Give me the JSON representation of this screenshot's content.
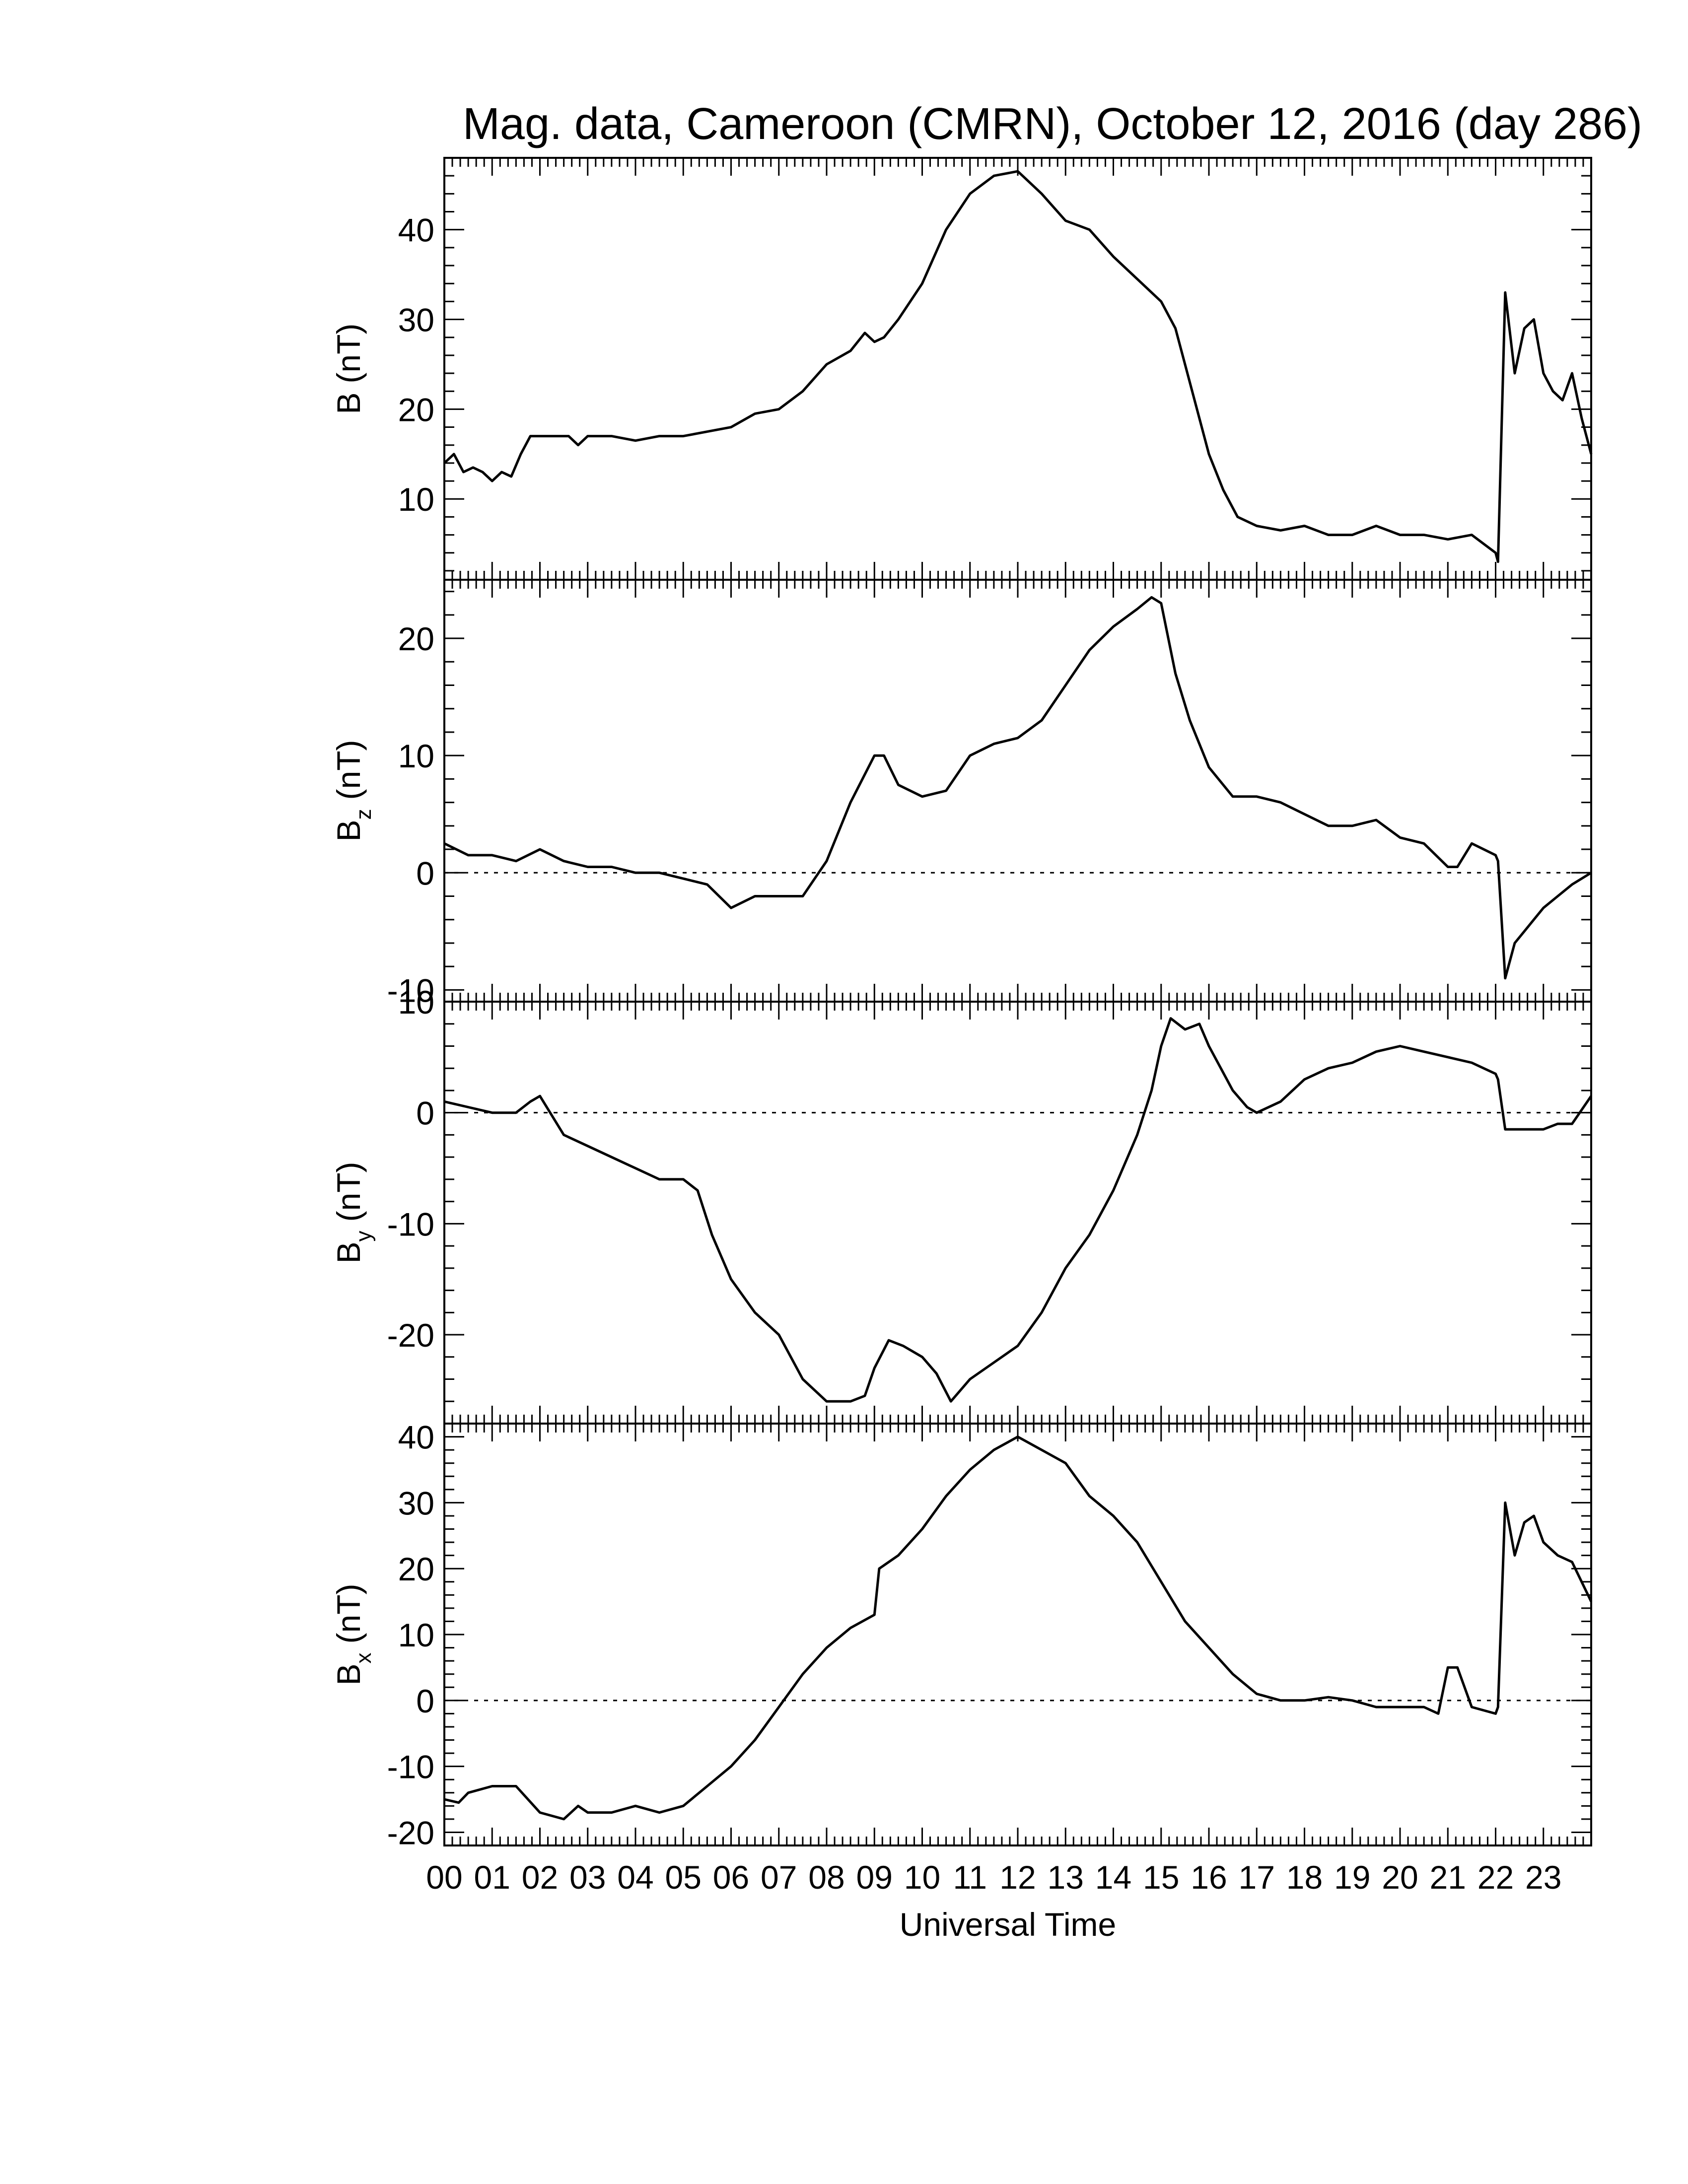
{
  "chart_data": {
    "type": "line",
    "title": "Mag. data, Cameroon (CMRN), October 12, 2016 (day 286)",
    "xlabel": "Universal Time",
    "x_unit": "hours UT",
    "xlim": [
      0,
      24
    ],
    "x_tick_labels": [
      "00",
      "01",
      "02",
      "03",
      "04",
      "05",
      "06",
      "07",
      "08",
      "09",
      "10",
      "11",
      "12",
      "13",
      "14",
      "15",
      "16",
      "17",
      "18",
      "19",
      "20",
      "21",
      "22",
      "23"
    ],
    "line_color": "#000000",
    "panels": [
      {
        "id": "B",
        "ylabel": {
          "main": "B",
          "sub": "",
          "unit": "(nT)"
        },
        "ylim": [
          1,
          48
        ],
        "yticks": [
          10,
          20,
          30,
          40
        ],
        "zero_line": false,
        "x": [
          0,
          0.2,
          0.4,
          0.6,
          0.8,
          1.0,
          1.2,
          1.4,
          1.6,
          1.8,
          2.0,
          2.3,
          2.6,
          2.8,
          3.0,
          3.5,
          4.0,
          4.5,
          5.0,
          5.5,
          6.0,
          6.5,
          7.0,
          7.5,
          8.0,
          8.5,
          8.8,
          9.0,
          9.2,
          9.5,
          10.0,
          10.5,
          11.0,
          11.5,
          12.0,
          12.5,
          13.0,
          13.5,
          14.0,
          14.5,
          15.0,
          15.3,
          15.6,
          16.0,
          16.3,
          16.6,
          17.0,
          17.5,
          18.0,
          18.5,
          19.0,
          19.5,
          20.0,
          20.5,
          21.0,
          21.5,
          22.0,
          22.05,
          22.2,
          22.4,
          22.6,
          22.8,
          23.0,
          23.2,
          23.4,
          23.6,
          23.8,
          24.0
        ],
        "y": [
          14,
          15,
          13,
          13.5,
          13,
          12,
          13,
          12.5,
          15,
          17,
          17,
          17,
          17,
          16,
          17,
          17,
          16.5,
          17,
          17,
          17.5,
          18,
          19.5,
          20,
          22,
          25,
          26.5,
          28.5,
          27.5,
          28,
          30,
          34,
          40,
          44,
          46,
          46.5,
          44,
          41,
          40,
          37,
          34.5,
          32,
          29,
          23,
          15,
          11,
          8,
          7,
          6.5,
          7,
          6,
          6,
          7,
          6,
          6,
          5.5,
          6,
          4,
          3,
          33,
          24,
          29,
          30,
          24,
          22,
          21,
          24,
          19,
          15
        ]
      },
      {
        "id": "Bz",
        "ylabel": {
          "main": "B",
          "sub": "z",
          "unit": "(nT)"
        },
        "ylim": [
          -11,
          25
        ],
        "yticks": [
          -10,
          0,
          10,
          20
        ],
        "zero_line": true,
        "x": [
          0,
          0.5,
          1.0,
          1.5,
          2.0,
          2.5,
          3.0,
          3.5,
          4.0,
          4.5,
          5.0,
          5.5,
          6.0,
          6.5,
          7.0,
          7.5,
          8.0,
          8.5,
          9.0,
          9.2,
          9.5,
          10.0,
          10.5,
          11.0,
          11.5,
          12.0,
          12.5,
          13.0,
          13.5,
          14.0,
          14.5,
          14.8,
          15.0,
          15.3,
          15.6,
          16.0,
          16.5,
          17.0,
          17.5,
          18.0,
          18.5,
          19.0,
          19.5,
          20.0,
          20.5,
          21.0,
          21.2,
          21.5,
          22.0,
          22.05,
          22.2,
          22.4,
          22.6,
          22.8,
          23.0,
          23.3,
          23.6,
          24.0
        ],
        "y": [
          2.5,
          1.5,
          1.5,
          1,
          2,
          1,
          0.5,
          0.5,
          0,
          0,
          -0.5,
          -1,
          -3,
          -2,
          -2,
          -2,
          1,
          6,
          10,
          10,
          7.5,
          6.5,
          7,
          10,
          11,
          11.5,
          13,
          16,
          19,
          21,
          22.5,
          23.5,
          23,
          17,
          13,
          9,
          6.5,
          6.5,
          6,
          5,
          4,
          4,
          4.5,
          3,
          2.5,
          0.5,
          0.5,
          2.5,
          1.5,
          1,
          -9,
          -6,
          -5,
          -4,
          -3,
          -2,
          -1,
          0
        ]
      },
      {
        "id": "By",
        "ylabel": {
          "main": "B",
          "sub": "y",
          "unit": "(nT)"
        },
        "ylim": [
          -28,
          10
        ],
        "yticks": [
          -20,
          -10,
          0,
          10
        ],
        "zero_line": true,
        "x": [
          0,
          0.5,
          1.0,
          1.5,
          1.8,
          2.0,
          2.5,
          3.0,
          3.5,
          4.0,
          4.5,
          5.0,
          5.3,
          5.6,
          6.0,
          6.5,
          7.0,
          7.5,
          8.0,
          8.5,
          8.8,
          9.0,
          9.3,
          9.6,
          10.0,
          10.3,
          10.6,
          11.0,
          11.5,
          12.0,
          12.5,
          13.0,
          13.5,
          14.0,
          14.5,
          14.8,
          15.0,
          15.2,
          15.5,
          15.8,
          16.0,
          16.5,
          16.8,
          17.0,
          17.5,
          18.0,
          18.5,
          19.0,
          19.5,
          20.0,
          20.5,
          21.0,
          21.5,
          22.0,
          22.05,
          22.2,
          22.5,
          23.0,
          23.3,
          23.6,
          24.0
        ],
        "y": [
          1,
          0.5,
          0,
          0,
          1,
          1.5,
          -2,
          -3,
          -4,
          -5,
          -6,
          -6,
          -7,
          -11,
          -15,
          -18,
          -20,
          -24,
          -26,
          -26,
          -25.5,
          -23,
          -20.5,
          -21,
          -22,
          -23.5,
          -26,
          -24,
          -22.5,
          -21,
          -18,
          -14,
          -11,
          -7,
          -2,
          2,
          6,
          8.5,
          7.5,
          8,
          6,
          2,
          0.5,
          0,
          1,
          3,
          4,
          4.5,
          5.5,
          6,
          5.5,
          5,
          4.5,
          3.5,
          3,
          -1.5,
          -1.5,
          -1.5,
          -1,
          -1,
          1.5
        ]
      },
      {
        "id": "Bx",
        "ylabel": {
          "main": "B",
          "sub": "x",
          "unit": "(nT)"
        },
        "ylim": [
          -22,
          42
        ],
        "yticks": [
          -20,
          -10,
          0,
          10,
          20,
          30,
          40
        ],
        "zero_line": true,
        "x": [
          0,
          0.3,
          0.5,
          1.0,
          1.5,
          2.0,
          2.5,
          2.8,
          3.0,
          3.5,
          4.0,
          4.5,
          5.0,
          5.5,
          6.0,
          6.5,
          7.0,
          7.5,
          8.0,
          8.5,
          9.0,
          9.1,
          9.5,
          10.0,
          10.5,
          11.0,
          11.5,
          12.0,
          12.5,
          13.0,
          13.5,
          14.0,
          14.5,
          15.0,
          15.5,
          16.0,
          16.5,
          17.0,
          17.5,
          18.0,
          18.5,
          19.0,
          19.5,
          20.0,
          20.5,
          20.8,
          21.0,
          21.2,
          21.5,
          22.0,
          22.05,
          22.2,
          22.4,
          22.6,
          22.8,
          23.0,
          23.3,
          23.6,
          24.0
        ],
        "y": [
          -15,
          -15.5,
          -14,
          -13,
          -13,
          -17,
          -18,
          -16,
          -17,
          -17,
          -16,
          -17,
          -16,
          -13,
          -10,
          -6,
          -1,
          4,
          8,
          11,
          13,
          20,
          22,
          26,
          31,
          35,
          38,
          40,
          38,
          36,
          31,
          28,
          24,
          18,
          12,
          8,
          4,
          1,
          0,
          0,
          0.5,
          0,
          -1,
          -1,
          -1,
          -2,
          5,
          5,
          -1,
          -2,
          -1,
          30,
          22,
          27,
          28,
          24,
          22,
          21,
          15
        ]
      }
    ]
  }
}
